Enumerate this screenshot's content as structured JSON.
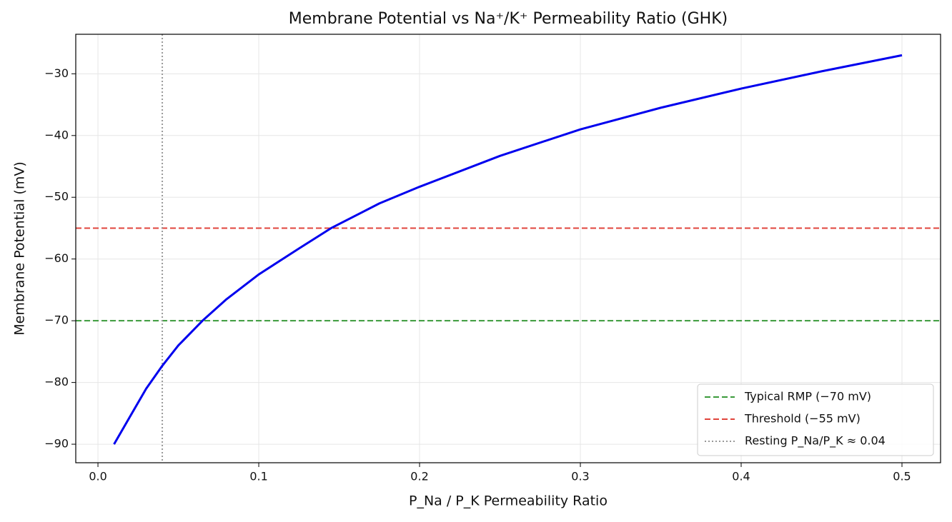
{
  "chart_data": {
    "type": "line",
    "title": "Membrane Potential vs Na⁺/K⁺ Permeability Ratio (GHK)",
    "x_label": "P_Na / P_K Permeability Ratio",
    "y_label": "Membrane Potential (mV)",
    "x": [
      0.01,
      0.02,
      0.03,
      0.04,
      0.05,
      0.065,
      0.08,
      0.1,
      0.125,
      0.145,
      0.175,
      0.2,
      0.25,
      0.3,
      0.35,
      0.4,
      0.45,
      0.5
    ],
    "series": [
      {
        "name": null,
        "color": "#0000ee",
        "values": [
          -90,
          -85.5,
          -81,
          -77.3,
          -74,
          -70,
          -66.5,
          -62.5,
          -58.3,
          -55,
          -51,
          -48.3,
          -43.3,
          -39,
          -35.5,
          -32.4,
          -29.6,
          -27
        ]
      }
    ],
    "reference_lines": [
      {
        "name": "Typical RMP (−70 mV)",
        "orientation": "horizontal",
        "value": -70,
        "color": "#3a9a3a",
        "style": "dashed"
      },
      {
        "name": "Threshold (−55 mV)",
        "orientation": "horizontal",
        "value": -55,
        "color": "#e0443c",
        "style": "dashed"
      },
      {
        "name": "Resting P_Na/P_K ≈ 0.04",
        "orientation": "vertical",
        "value": 0.04,
        "color": "#999999",
        "style": "dotted"
      }
    ],
    "xlim": [
      -0.0138,
      0.524
    ],
    "ylim": [
      -93,
      -23.6
    ],
    "xticks": [
      {
        "value": 0,
        "label": "0.0"
      },
      0.1,
      0.2,
      0.3,
      0.4,
      0.5
    ],
    "yticks": [
      {
        "value": -90,
        "label": "−90"
      },
      {
        "value": -80,
        "label": "−80"
      },
      {
        "value": -70,
        "label": "−70"
      },
      {
        "value": -60,
        "label": "−60"
      },
      {
        "value": -50,
        "label": "−50"
      },
      {
        "value": -40,
        "label": "−40"
      },
      {
        "value": -30,
        "label": "−30"
      }
    ],
    "grid": true,
    "legend": "lower right"
  }
}
